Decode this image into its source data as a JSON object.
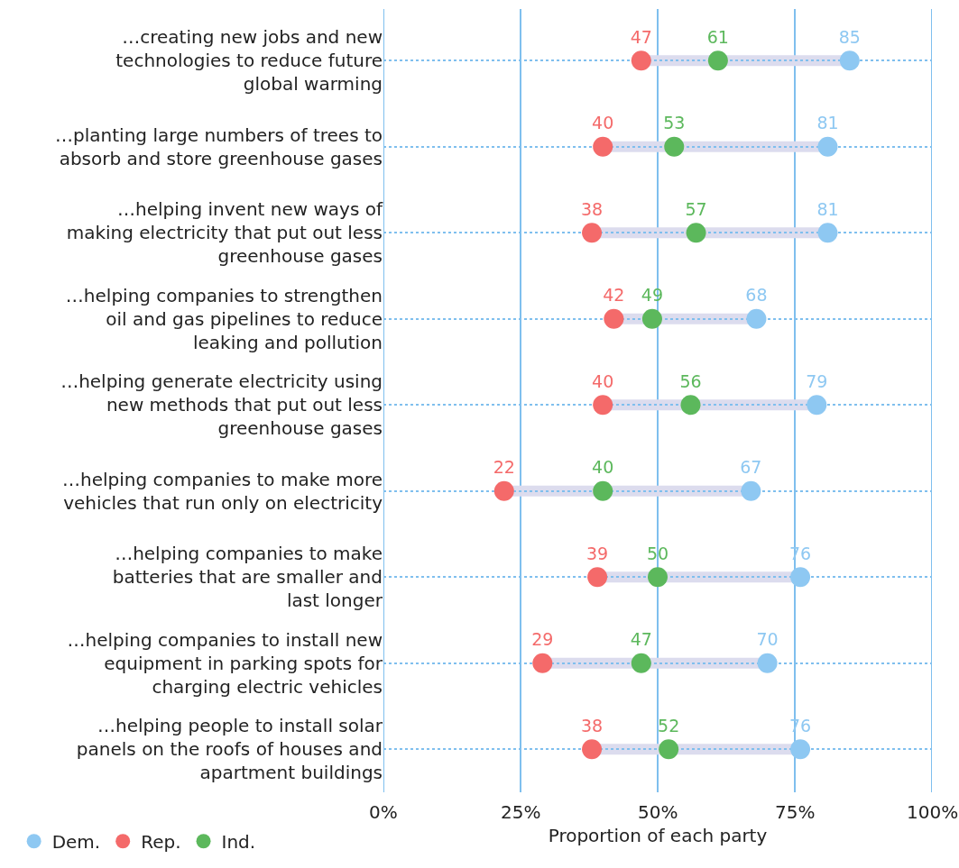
{
  "chart_data": {
    "type": "scatter",
    "orientation": "horizontal",
    "xlabel": "Proportion of each party",
    "categories": [
      "…creating new jobs and new\ntechnologies to reduce future\nglobal warming",
      "…planting large numbers of trees to\nabsorb and store greenhouse gases",
      "…helping invent new ways of\nmaking electricity that put out less\ngreenhouse gases",
      "…helping companies to strengthen\noil and gas pipelines to reduce\nleaking and pollution",
      "…helping generate electricity using\nnew methods that put out less\ngreenhouse gases",
      "…helping companies to make more\nvehicles that run only on electricity",
      "…helping companies to make\nbatteries that are smaller and\nlast longer",
      "…helping companies to install new\nequipment in parking spots for\ncharging electric vehicles",
      "…helping people to install solar\npanels on the roofs of houses and\napartment buildings"
    ],
    "series": [
      {
        "name": "Dem.",
        "color": "#8ec8f2",
        "values": [
          85,
          81,
          81,
          68,
          79,
          67,
          76,
          70,
          76
        ]
      },
      {
        "name": "Rep.",
        "color": "#f46a6a",
        "values": [
          47,
          40,
          38,
          42,
          40,
          22,
          39,
          29,
          38
        ]
      },
      {
        "name": "Ind.",
        "color": "#5cb85c",
        "values": [
          61,
          53,
          57,
          49,
          56,
          40,
          50,
          47,
          52
        ]
      }
    ],
    "xlim": [
      0,
      100
    ],
    "xticks": [
      {
        "value": 0,
        "label": "0%"
      },
      {
        "value": 25,
        "label": "25%"
      },
      {
        "value": 50,
        "label": "50%"
      },
      {
        "value": 75,
        "label": "75%"
      },
      {
        "value": 100,
        "label": "100%"
      }
    ],
    "grid": true,
    "legend": "bottom left",
    "marker": "circle",
    "data_labels": true
  }
}
